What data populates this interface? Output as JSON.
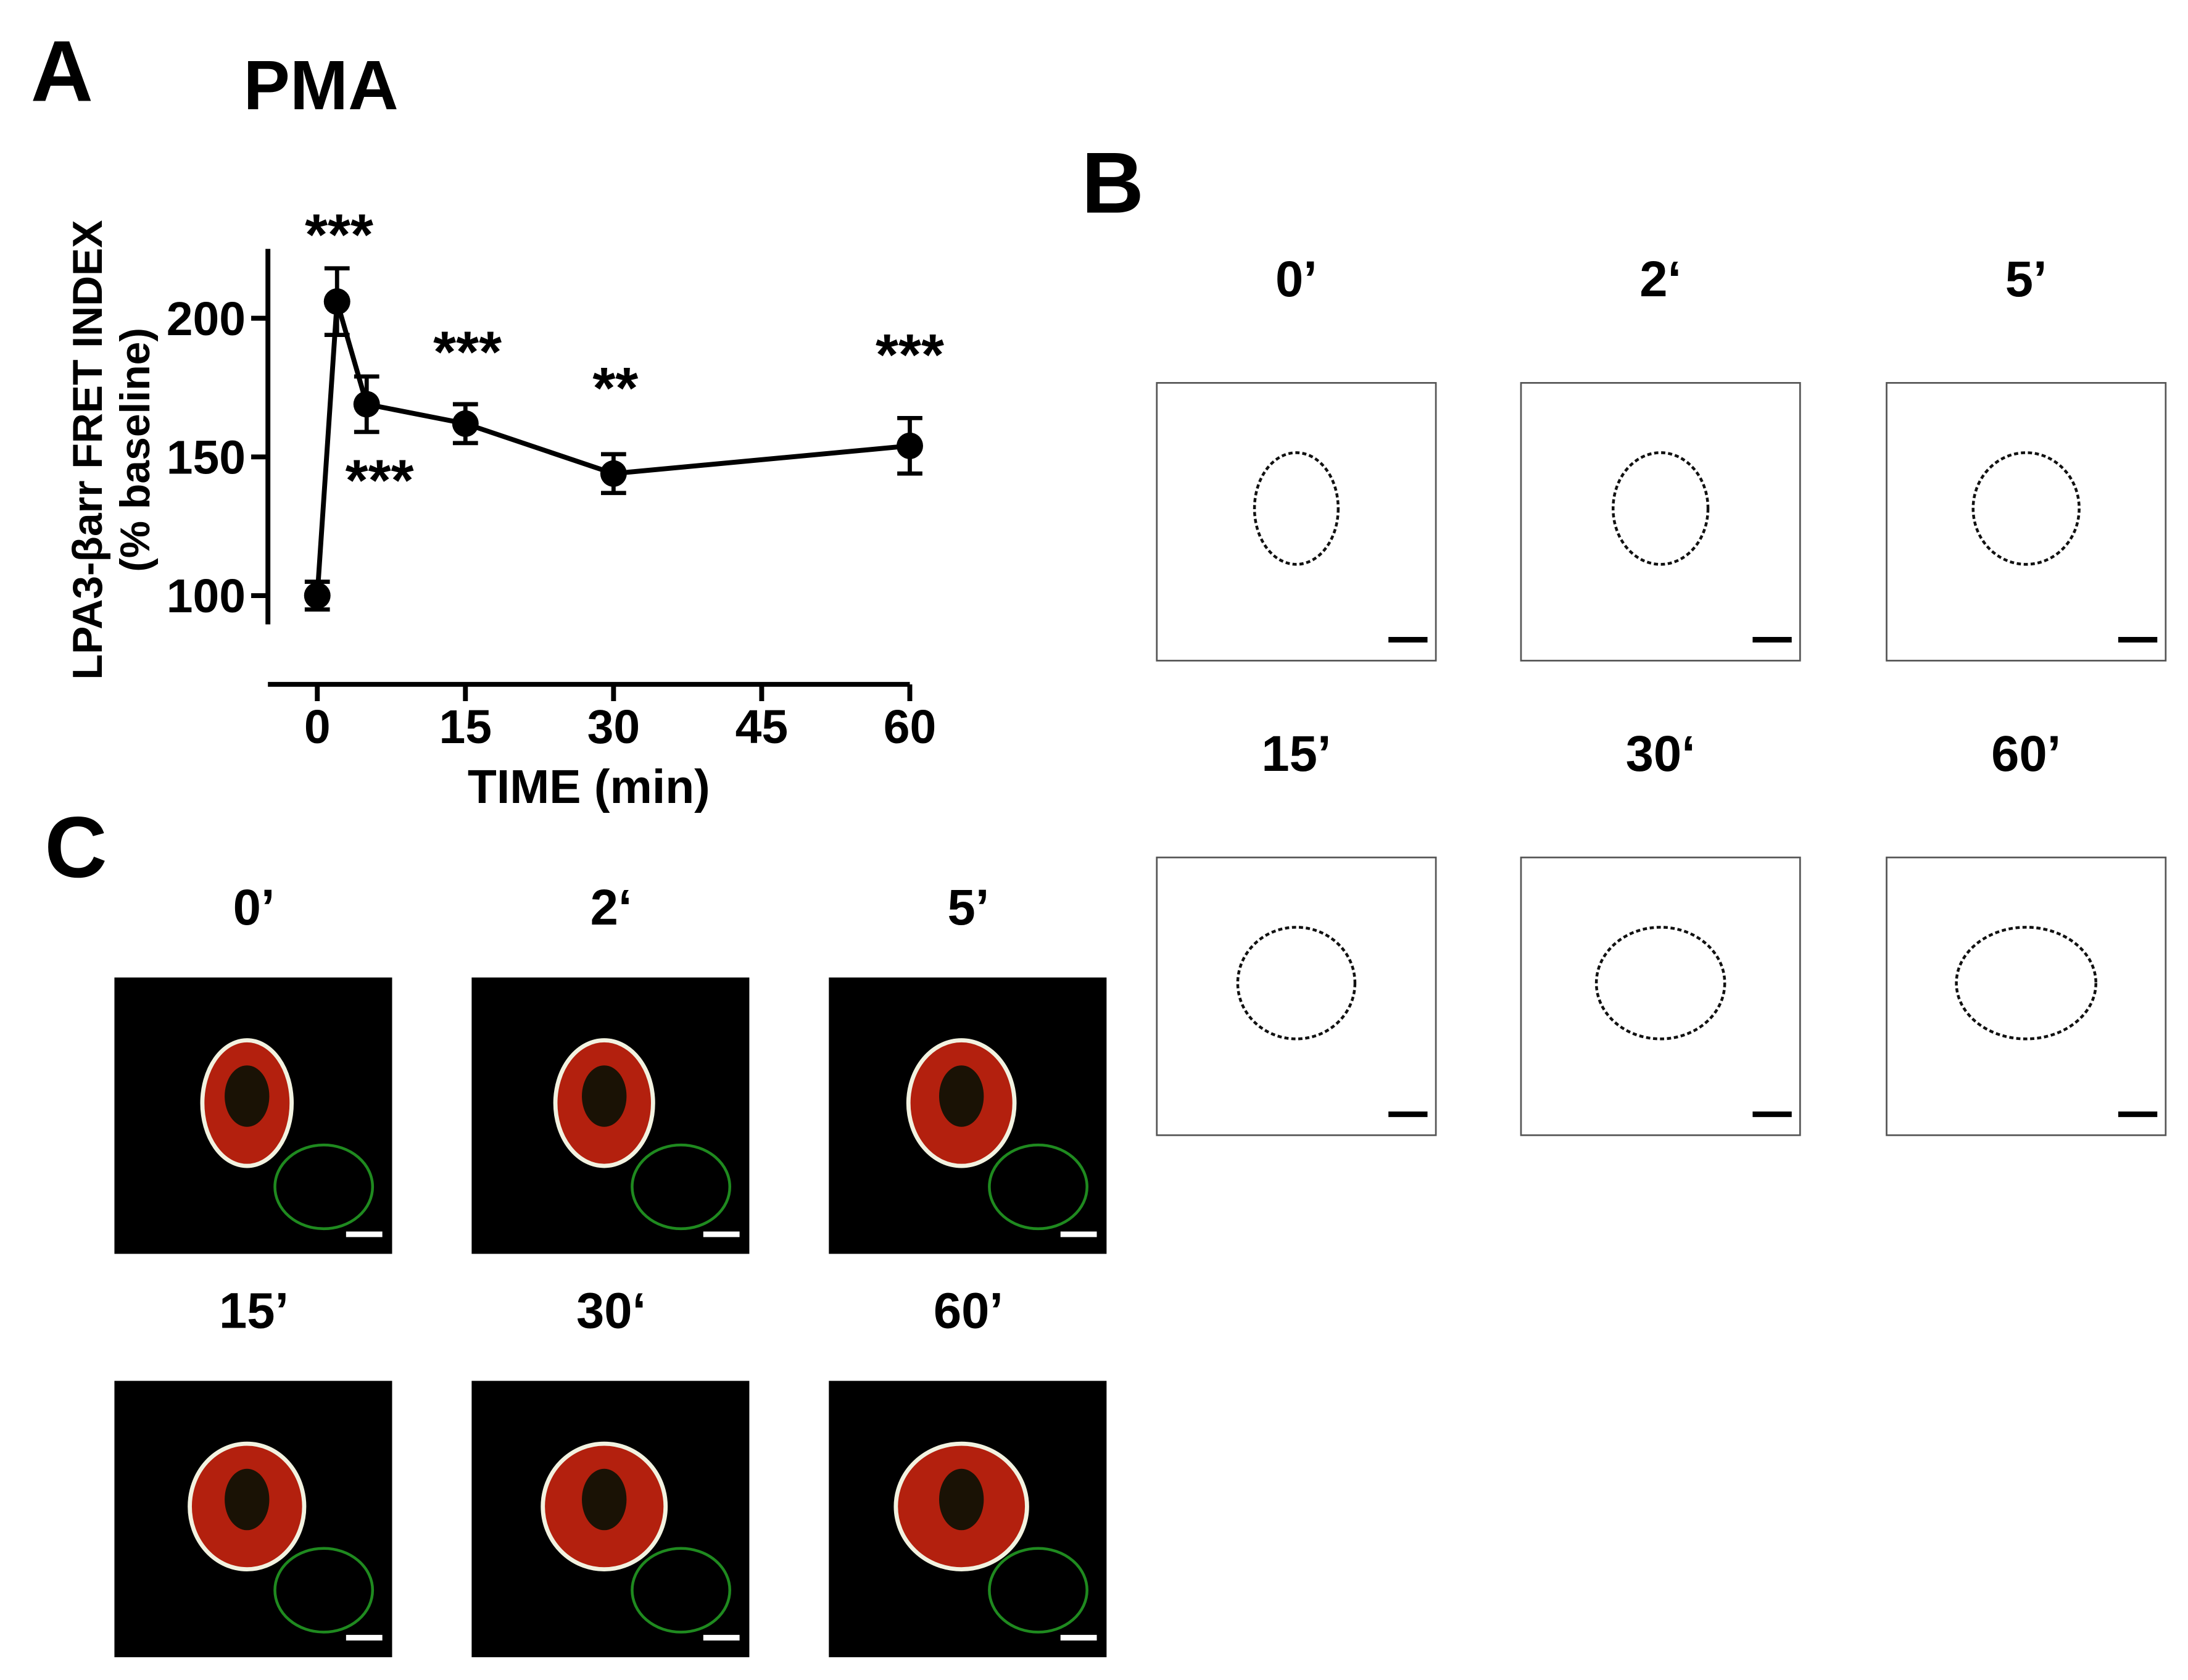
{
  "panel_labels": [
    "A",
    "B",
    "C"
  ],
  "chart_data": {
    "type": "line",
    "title": "PMA",
    "x_label": "TIME (min)",
    "y_label": [
      "LPA3-βarr FRET INDEX",
      "(% baseline)"
    ],
    "x": [
      0,
      2,
      5,
      15,
      30,
      60
    ],
    "series": [
      {
        "color": "#000000",
        "values": [
          100,
          206,
          169,
          162,
          144,
          154
        ],
        "errors": [
          5,
          12,
          10,
          7,
          7,
          10
        ]
      }
    ],
    "xlim": [
      -5,
      60
    ],
    "xticks": [
      0,
      15,
      30,
      45,
      60
    ],
    "ylim": [
      68,
      225
    ],
    "yticks": [
      100,
      150,
      200
    ],
    "annotations": [
      "***",
      "***",
      "***",
      "**",
      "***"
    ]
  },
  "panel_b": {
    "labels": [
      "0’",
      "2‘",
      "5’",
      "15’",
      "30‘",
      "60’"
    ]
  },
  "panel_c": {
    "labels": [
      "0’",
      "2‘",
      "5’",
      "15’",
      "30‘",
      "60’"
    ]
  }
}
